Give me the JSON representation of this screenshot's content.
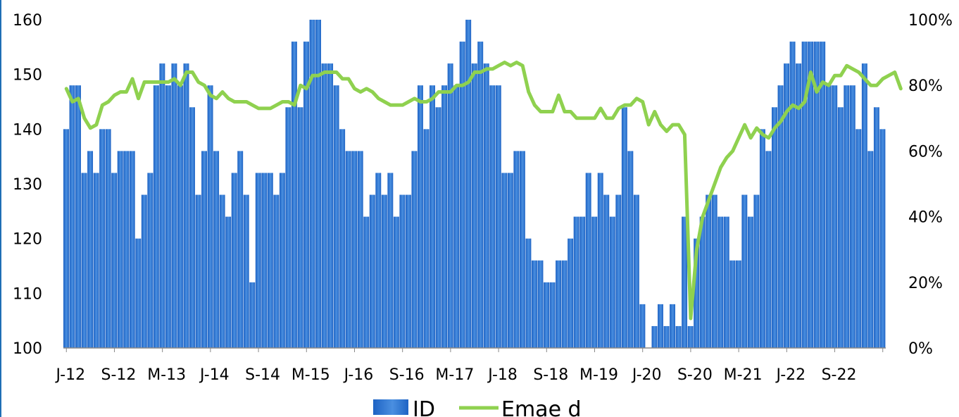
{
  "chart_data": {
    "type": "bar",
    "title": "",
    "x_tick_labels": [
      "J-12",
      "S-12",
      "M-13",
      "J-14",
      "S-14",
      "M-15",
      "J-16",
      "S-16",
      "M-17",
      "J-18",
      "S-18",
      "M-19",
      "J-20",
      "S-20",
      "M-21",
      "J-22",
      "S-22"
    ],
    "y_left": {
      "range": [
        100,
        160
      ],
      "ticks": [
        "100",
        "110",
        "120",
        "130",
        "140",
        "150",
        "160"
      ]
    },
    "y_right": {
      "range": [
        0,
        100
      ],
      "ticks": [
        "0%",
        "20%",
        "40%",
        "60%",
        "80%",
        "100%"
      ],
      "unit": "%"
    },
    "legend": {
      "position": "bottom-center",
      "entries": [
        "ID",
        "Emae d"
      ]
    },
    "colors": {
      "bar": "#1e63c4",
      "bar_light": "#4a8fe0",
      "line": "#8fd14f",
      "axis": "#888888"
    },
    "series": [
      {
        "name": "ID",
        "kind": "bar",
        "axis": "left",
        "values": [
          140,
          148,
          148,
          132,
          136,
          132,
          140,
          140,
          132,
          136,
          136,
          136,
          120,
          128,
          132,
          148,
          152,
          148,
          152,
          148,
          152,
          144,
          128,
          136,
          148,
          136,
          128,
          124,
          132,
          136,
          128,
          112,
          132,
          132,
          132,
          128,
          132,
          144,
          156,
          144,
          156,
          160,
          160,
          152,
          152,
          148,
          140,
          136,
          136,
          136,
          124,
          128,
          132,
          128,
          132,
          124,
          128,
          128,
          136,
          148,
          140,
          148,
          144,
          148,
          152,
          148,
          156,
          160,
          152,
          156,
          152,
          148,
          148,
          132,
          132,
          136,
          136,
          120,
          116,
          116,
          112,
          112,
          116,
          116,
          120,
          124,
          124,
          132,
          124,
          132,
          128,
          124,
          128,
          144,
          136,
          128,
          108,
          100,
          104,
          108,
          104,
          108,
          104,
          124,
          104,
          120,
          124,
          128,
          128,
          124,
          124,
          116,
          116,
          128,
          124,
          128,
          140,
          136,
          144,
          148,
          152,
          156,
          152,
          156,
          156,
          156,
          156,
          148,
          148,
          144,
          148,
          148,
          140,
          152,
          136,
          144,
          140
        ]
      },
      {
        "name": "Emae d",
        "kind": "line",
        "axis": "right",
        "values": [
          79,
          75,
          76,
          70,
          67,
          68,
          74,
          75,
          77,
          78,
          78,
          82,
          76,
          81,
          81,
          81,
          81,
          81,
          82,
          80,
          84,
          84,
          81,
          80,
          77,
          76,
          78,
          76,
          75,
          75,
          75,
          74,
          73,
          73,
          73,
          74,
          75,
          75,
          74,
          80,
          79,
          83,
          83,
          84,
          84,
          84,
          82,
          82,
          79,
          78,
          79,
          78,
          76,
          75,
          74,
          74,
          74,
          75,
          76,
          75,
          75,
          76,
          78,
          78,
          78,
          80,
          80,
          81,
          84,
          84,
          85,
          85,
          86,
          87,
          86,
          87,
          86,
          78,
          74,
          72,
          72,
          72,
          77,
          72,
          72,
          70,
          70,
          70,
          70,
          73,
          70,
          70,
          73,
          74,
          74,
          76,
          75,
          68,
          72,
          68,
          66,
          68,
          68,
          65,
          9,
          30,
          40,
          45,
          50,
          55,
          58,
          60,
          64,
          68,
          64,
          67,
          65,
          64,
          67,
          69,
          72,
          74,
          73,
          75,
          84,
          78,
          81,
          80,
          83,
          83,
          86,
          85,
          84,
          82,
          80,
          80,
          82,
          83,
          84,
          79
        ]
      }
    ]
  }
}
